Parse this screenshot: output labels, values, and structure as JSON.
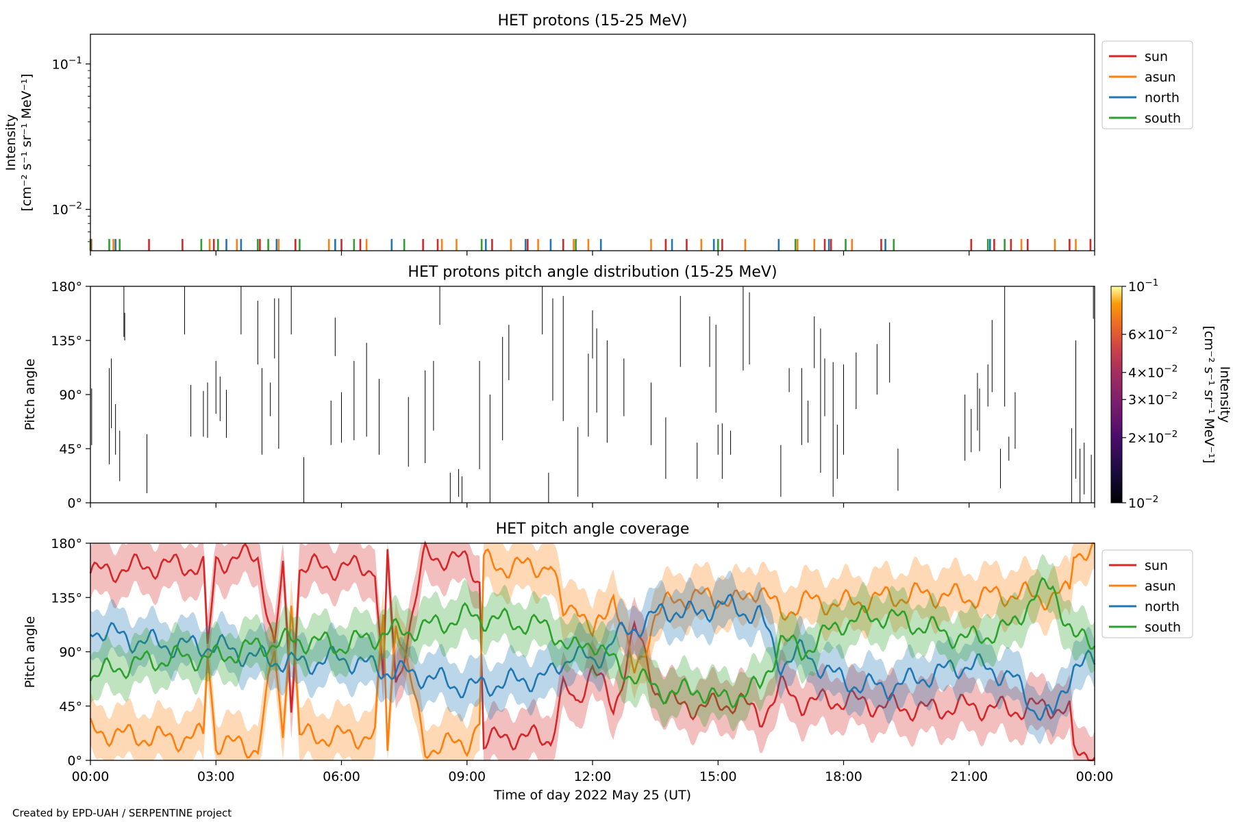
{
  "footer": {
    "credit": "Created by EPD-UAH / SERPENTINE project"
  },
  "colors": {
    "sun": "#d62728",
    "asun": "#ff7f0e",
    "north": "#1f77b4",
    "south": "#2ca02c"
  },
  "chart_data": [
    {
      "type": "line",
      "title": "HET protons (15-25 MeV)",
      "ylabel": [
        "Intensity",
        "[cm⁻² s⁻¹ sr⁻¹ MeV⁻¹]"
      ],
      "yscale": "log",
      "ylim": [
        0.0052,
        0.16
      ],
      "yticks": [
        {
          "value": 0.1,
          "base": "10",
          "exp": "−1"
        },
        {
          "value": 0.01,
          "base": "10",
          "exp": "−2"
        }
      ],
      "xlim_hours": [
        0,
        24
      ],
      "legend": {
        "placement": "outside-right",
        "entries": [
          "sun",
          "asun",
          "north",
          "south"
        ]
      },
      "marker_level": 0.0055,
      "series": [
        {
          "name": "sun",
          "x_hours": [
            0.02,
            1.4,
            2.2,
            2.95,
            4.05,
            4.9,
            6.0,
            6.45,
            7.95,
            8.3,
            9.6,
            10.45,
            11.3,
            13.75,
            14.25,
            15.1,
            17.55,
            17.7,
            18.9,
            21.05,
            21.6,
            22.0,
            22.4,
            23.4,
            23.9
          ]
        },
        {
          "name": "asun",
          "x_hours": [
            0.55,
            2.85,
            3.5,
            4.5,
            5.7,
            6.6,
            8.4,
            8.75,
            10.05,
            10.7,
            11.55,
            11.9,
            13.4,
            14.6,
            15.65,
            16.9,
            17.3,
            18.2,
            22.25,
            23.05,
            23.55
          ]
        },
        {
          "name": "north",
          "x_hours": [
            0.6,
            3.25,
            3.6,
            4.45,
            5.85,
            7.2,
            9.45,
            10.4,
            11.0,
            12.2,
            13.9,
            14.9,
            16.45,
            17.65,
            19.0,
            21.5
          ]
        },
        {
          "name": "south",
          "x_hours": [
            0.0,
            0.45,
            0.7,
            2.65,
            3.05,
            4.0,
            4.25,
            5.0,
            6.3,
            7.5,
            9.35,
            11.6,
            15.0,
            16.85,
            18.05,
            19.2,
            21.45,
            21.85
          ]
        }
      ]
    },
    {
      "type": "heatmap",
      "title": "HET protons pitch angle distribution (15-25 MeV)",
      "ylabel": "Pitch angle",
      "ylim": [
        0,
        180
      ],
      "yticks": [
        "0°",
        "45°",
        "90°",
        "135°",
        "180°"
      ],
      "xlim_hours": [
        0,
        24
      ],
      "colorbar": {
        "label": [
          "Intensity",
          "[cm⁻² s⁻¹ sr⁻¹ MeV⁻¹]"
        ],
        "scale": "log",
        "range": [
          0.01,
          0.1
        ],
        "ticks": [
          {
            "value": 0.1,
            "mant": "",
            "exp": "−1"
          },
          {
            "value": 0.06,
            "mant": "6×",
            "exp": "−2"
          },
          {
            "value": 0.04,
            "mant": "4×",
            "exp": "−2"
          },
          {
            "value": 0.03,
            "mant": "3×",
            "exp": "−2"
          },
          {
            "value": 0.02,
            "mant": "2×",
            "exp": "−2"
          },
          {
            "value": 0.01,
            "mant": "",
            "exp": "−2"
          }
        ]
      },
      "segments": [
        [
          0.03,
          48,
          95
        ],
        [
          0.45,
          32,
          112
        ],
        [
          0.5,
          62,
          120
        ],
        [
          0.6,
          40,
          82
        ],
        [
          0.7,
          18,
          60
        ],
        [
          0.8,
          138,
          180
        ],
        [
          0.82,
          135,
          158
        ],
        [
          1.35,
          8,
          57
        ],
        [
          2.25,
          140,
          180
        ],
        [
          2.4,
          55,
          98
        ],
        [
          2.7,
          55,
          93
        ],
        [
          2.8,
          54,
          100
        ],
        [
          3.0,
          74,
          118
        ],
        [
          3.1,
          68,
          105
        ],
        [
          3.25,
          54,
          94
        ],
        [
          3.6,
          140,
          180
        ],
        [
          4.0,
          115,
          168
        ],
        [
          4.1,
          40,
          112
        ],
        [
          4.3,
          72,
          100
        ],
        [
          4.4,
          120,
          170
        ],
        [
          4.5,
          45,
          170
        ],
        [
          4.8,
          140,
          180
        ],
        [
          5.1,
          0,
          38
        ],
        [
          5.75,
          48,
          85
        ],
        [
          5.85,
          122,
          154
        ],
        [
          6.0,
          50,
          92
        ],
        [
          6.3,
          52,
          118
        ],
        [
          6.6,
          55,
          133
        ],
        [
          6.9,
          40,
          103
        ],
        [
          7.6,
          30,
          88
        ],
        [
          8.0,
          33,
          110
        ],
        [
          8.2,
          60,
          118
        ],
        [
          8.35,
          148,
          180
        ],
        [
          8.6,
          0,
          25
        ],
        [
          8.8,
          5,
          28
        ],
        [
          8.88,
          0,
          22
        ],
        [
          9.3,
          28,
          118
        ],
        [
          9.55,
          0,
          90
        ],
        [
          9.85,
          52,
          138
        ],
        [
          10.0,
          102,
          148
        ],
        [
          10.8,
          140,
          180
        ],
        [
          10.95,
          0,
          25
        ],
        [
          11.05,
          85,
          170
        ],
        [
          11.3,
          68,
          172
        ],
        [
          11.65,
          5,
          63
        ],
        [
          11.9,
          55,
          124
        ],
        [
          12.0,
          120,
          160
        ],
        [
          12.1,
          75,
          145
        ],
        [
          12.35,
          50,
          135
        ],
        [
          12.75,
          72,
          120
        ],
        [
          13.4,
          48,
          100
        ],
        [
          13.75,
          20,
          71
        ],
        [
          14.1,
          113,
          172
        ],
        [
          14.5,
          20,
          50
        ],
        [
          14.8,
          113,
          155
        ],
        [
          14.95,
          75,
          148
        ],
        [
          15.0,
          40,
          65
        ],
        [
          15.1,
          20,
          66
        ],
        [
          15.3,
          40,
          60
        ],
        [
          15.6,
          110,
          180
        ],
        [
          15.75,
          115,
          175
        ],
        [
          16.5,
          5,
          48
        ],
        [
          16.7,
          92,
          112
        ],
        [
          17.0,
          48,
          112
        ],
        [
          17.15,
          50,
          85
        ],
        [
          17.3,
          112,
          155
        ],
        [
          17.45,
          25,
          145
        ],
        [
          17.55,
          72,
          120
        ],
        [
          17.75,
          5,
          117
        ],
        [
          17.85,
          20,
          65
        ],
        [
          18.0,
          40,
          115
        ],
        [
          18.3,
          78,
          125
        ],
        [
          18.8,
          90,
          132
        ],
        [
          19.1,
          100,
          150
        ],
        [
          19.3,
          10,
          45
        ],
        [
          20.9,
          35,
          90
        ],
        [
          21.05,
          42,
          78
        ],
        [
          21.2,
          60,
          108
        ],
        [
          21.25,
          43,
          95
        ],
        [
          21.45,
          80,
          115
        ],
        [
          21.55,
          92,
          152
        ],
        [
          21.75,
          12,
          45
        ],
        [
          21.85,
          80,
          180
        ],
        [
          21.95,
          35,
          55
        ],
        [
          22.1,
          45,
          92
        ],
        [
          23.45,
          0,
          62
        ],
        [
          23.55,
          20,
          135
        ],
        [
          23.65,
          0,
          45
        ],
        [
          23.75,
          7,
          50
        ],
        [
          23.92,
          0,
          40
        ],
        [
          23.97,
          153,
          180
        ]
      ]
    },
    {
      "type": "area",
      "title": "HET pitch angle coverage",
      "ylabel": "Pitch angle",
      "xlabel": "Time of day 2022 May 25 (UT)",
      "ylim": [
        0,
        180
      ],
      "yticks": [
        "0°",
        "45°",
        "90°",
        "135°",
        "180°"
      ],
      "xlim_hours": [
        0,
        24
      ],
      "xticks": [
        "00:00",
        "03:00",
        "06:00",
        "09:00",
        "12:00",
        "15:00",
        "18:00",
        "21:00",
        "00:00"
      ],
      "legend": {
        "placement": "outside-right",
        "entries": [
          "sun",
          "asun",
          "north",
          "south"
        ]
      },
      "series": [
        {
          "name": "sun",
          "x_hours": [
            0,
            1,
            2,
            2.7,
            2.8,
            3,
            4,
            4.4,
            4.6,
            4.8,
            5.0,
            6,
            6.8,
            7.0,
            7.1,
            7.3,
            8,
            9,
            9.3,
            9.4,
            10,
            11,
            11.3,
            11.6,
            12,
            12.5,
            13,
            13.5,
            14,
            14.5,
            15,
            15.5,
            16,
            16.5,
            17,
            18,
            19,
            20,
            21,
            22,
            23,
            23.4,
            23.5,
            24
          ],
          "y": [
            155,
            160,
            162,
            160,
            90,
            165,
            170,
            90,
            160,
            45,
            160,
            160,
            160,
            60,
            170,
            60,
            170,
            165,
            150,
            15,
            20,
            18,
            60,
            45,
            80,
            40,
            110,
            60,
            45,
            45,
            45,
            50,
            35,
            60,
            48,
            50,
            45,
            42,
            45,
            42,
            45,
            40,
            5,
            8
          ],
          "half_width": 22
        },
        {
          "name": "asun",
          "x_hours": [
            0,
            1,
            2,
            2.7,
            2.8,
            3,
            4,
            4.4,
            4.6,
            4.8,
            5.0,
            6,
            6.8,
            7.0,
            7.1,
            7.3,
            8,
            9,
            9.3,
            9.4,
            10,
            11,
            11.3,
            11.6,
            12,
            12.5,
            13,
            13.5,
            14,
            14.5,
            15,
            15.5,
            16,
            16.5,
            17,
            18,
            19,
            20,
            21,
            22,
            23,
            23.4,
            23.5,
            24
          ],
          "y": [
            25,
            20,
            18,
            20,
            90,
            15,
            10,
            90,
            20,
            135,
            20,
            20,
            20,
            120,
            10,
            120,
            10,
            15,
            30,
            165,
            160,
            162,
            120,
            135,
            100,
            140,
            70,
            120,
            135,
            135,
            135,
            130,
            145,
            120,
            132,
            130,
            135,
            138,
            135,
            138,
            135,
            140,
            175,
            172
          ],
          "half_width": 22
        },
        {
          "name": "north",
          "x_hours": [
            0,
            1,
            2,
            3,
            4,
            5,
            6,
            7,
            8,
            9,
            10,
            11,
            11.5,
            12,
            12.5,
            13,
            13.5,
            14,
            14.5,
            15,
            16,
            16.5,
            17,
            18,
            19,
            20,
            21,
            22,
            22.5,
            23,
            23.5,
            24
          ],
          "y": [
            110,
            100,
            95,
            95,
            85,
            80,
            85,
            75,
            70,
            60,
            65,
            70,
            90,
            80,
            100,
            110,
            120,
            125,
            120,
            130,
            120,
            80,
            90,
            65,
            60,
            70,
            80,
            70,
            45,
            35,
            80,
            80
          ],
          "half_width": 20
        },
        {
          "name": "south",
          "x_hours": [
            0,
            1,
            2,
            3,
            4,
            5,
            6,
            7,
            8,
            9,
            10,
            11,
            11.5,
            12,
            12.5,
            13,
            13.5,
            14,
            14.5,
            15,
            16,
            16.5,
            17,
            18,
            19,
            20,
            21,
            22,
            22.5,
            23,
            23.5,
            24
          ],
          "y": [
            70,
            80,
            85,
            85,
            95,
            100,
            95,
            105,
            110,
            120,
            115,
            110,
            90,
            100,
            80,
            70,
            60,
            55,
            60,
            50,
            60,
            100,
            90,
            115,
            120,
            110,
            100,
            110,
            135,
            145,
            100,
            100
          ],
          "half_width": 20
        }
      ]
    }
  ]
}
